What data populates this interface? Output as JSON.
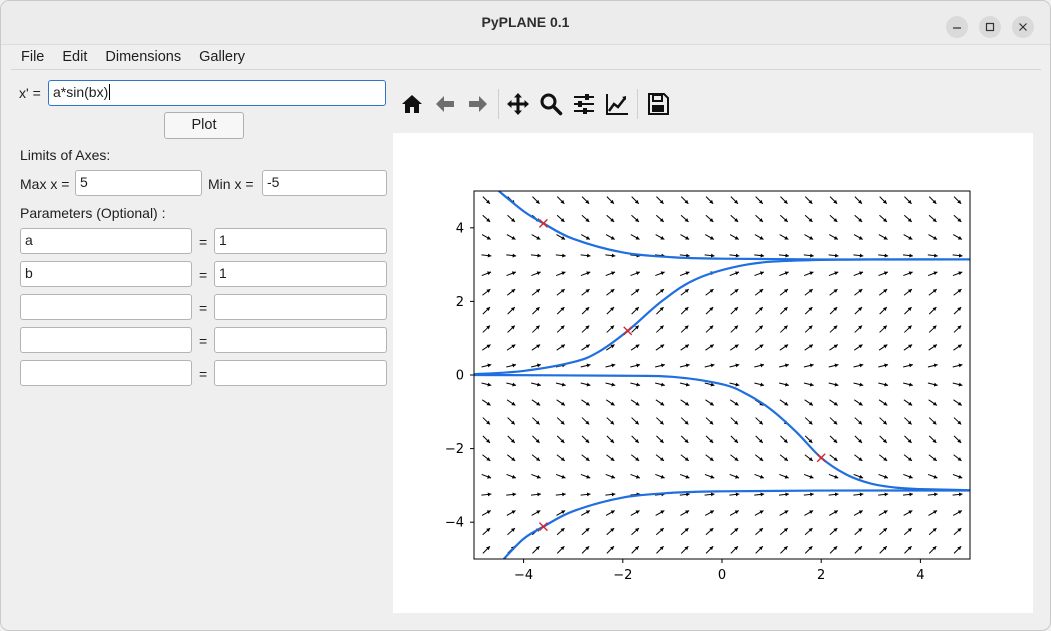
{
  "window": {
    "title": "PyPLANE 0.1",
    "controls": [
      "minimize",
      "maximize",
      "close"
    ]
  },
  "menu": {
    "items": [
      "File",
      "Edit",
      "Dimensions",
      "Gallery"
    ]
  },
  "equation": {
    "label": "x' =",
    "value": "a*sin(bx)"
  },
  "plot_button": "Plot",
  "limits": {
    "heading": "Limits of Axes:",
    "max_label": "Max x =",
    "max_value": "5",
    "min_label": "Min x =",
    "min_value": "-5"
  },
  "parameters": {
    "heading": "Parameters (Optional) :",
    "equals": "=",
    "rows": [
      {
        "name": "a",
        "value": "1"
      },
      {
        "name": "b",
        "value": "1"
      },
      {
        "name": "",
        "value": ""
      },
      {
        "name": "",
        "value": ""
      },
      {
        "name": "",
        "value": ""
      }
    ]
  },
  "toolbar": {
    "icons": [
      "home-icon",
      "back-arrow-icon",
      "forward-arrow-icon",
      "pan-icon",
      "zoom-icon",
      "subplots-icon",
      "axes-edit-icon",
      "save-icon"
    ]
  },
  "chart_data": {
    "type": "line",
    "title": "",
    "xlabel": "",
    "ylabel": "",
    "xlim": [
      -5,
      5
    ],
    "ylim": [
      -5,
      5
    ],
    "xticks": [
      -4,
      -2,
      0,
      2,
      4
    ],
    "yticks": [
      -4,
      -2,
      0,
      2,
      4
    ],
    "xtick_labels": [
      "−4",
      "−2",
      "0",
      "2",
      "4"
    ],
    "ytick_labels": [
      "−4",
      "−2",
      "0",
      "2",
      "4"
    ],
    "grid": false,
    "colors": {
      "trajectory": "#1f6fe0",
      "marker": "#d62728",
      "quiver": "#000000"
    },
    "vector_field": {
      "equation": "x' = a*sin(bx)",
      "t_count": 20,
      "x_count": 20
    },
    "markers": [
      {
        "t": -3.6,
        "x": 4.12
      },
      {
        "t": -1.9,
        "x": 1.2
      },
      {
        "t": 2.0,
        "x": -2.25
      },
      {
        "t": -3.6,
        "x": -4.12
      }
    ],
    "series": [
      {
        "x": [
          -4.5,
          -4.0,
          -3.6,
          -3.0,
          -2.0,
          -1.0,
          0.0,
          2.0,
          5.0
        ],
        "y": [
          5.0,
          4.45,
          4.12,
          3.7,
          3.33,
          3.2,
          3.16,
          3.14,
          3.14
        ]
      },
      {
        "x": [
          -5.0,
          -4.0,
          -3.0,
          -2.5,
          -1.9,
          -1.2,
          -0.5,
          0.5,
          1.5,
          3.0,
          5.0
        ],
        "y": [
          0.02,
          0.11,
          0.35,
          0.62,
          1.2,
          2.02,
          2.62,
          3.0,
          3.11,
          3.14,
          3.14
        ]
      },
      {
        "x": [
          -5.0,
          -2.0,
          -1.0,
          0.0,
          0.5,
          1.0,
          1.5,
          2.0,
          2.5,
          3.0,
          3.5,
          4.0,
          5.0
        ],
        "y": [
          0.0,
          -0.02,
          -0.05,
          -0.25,
          -0.52,
          -0.95,
          -1.55,
          -2.25,
          -2.7,
          -2.95,
          -3.06,
          -3.1,
          -3.13
        ]
      },
      {
        "x": [
          -4.4,
          -4.0,
          -3.6,
          -3.0,
          -2.0,
          -1.0,
          0.0,
          2.0,
          5.0
        ],
        "y": [
          -5.0,
          -4.45,
          -4.12,
          -3.7,
          -3.33,
          -3.2,
          -3.16,
          -3.14,
          -3.14
        ]
      }
    ]
  }
}
